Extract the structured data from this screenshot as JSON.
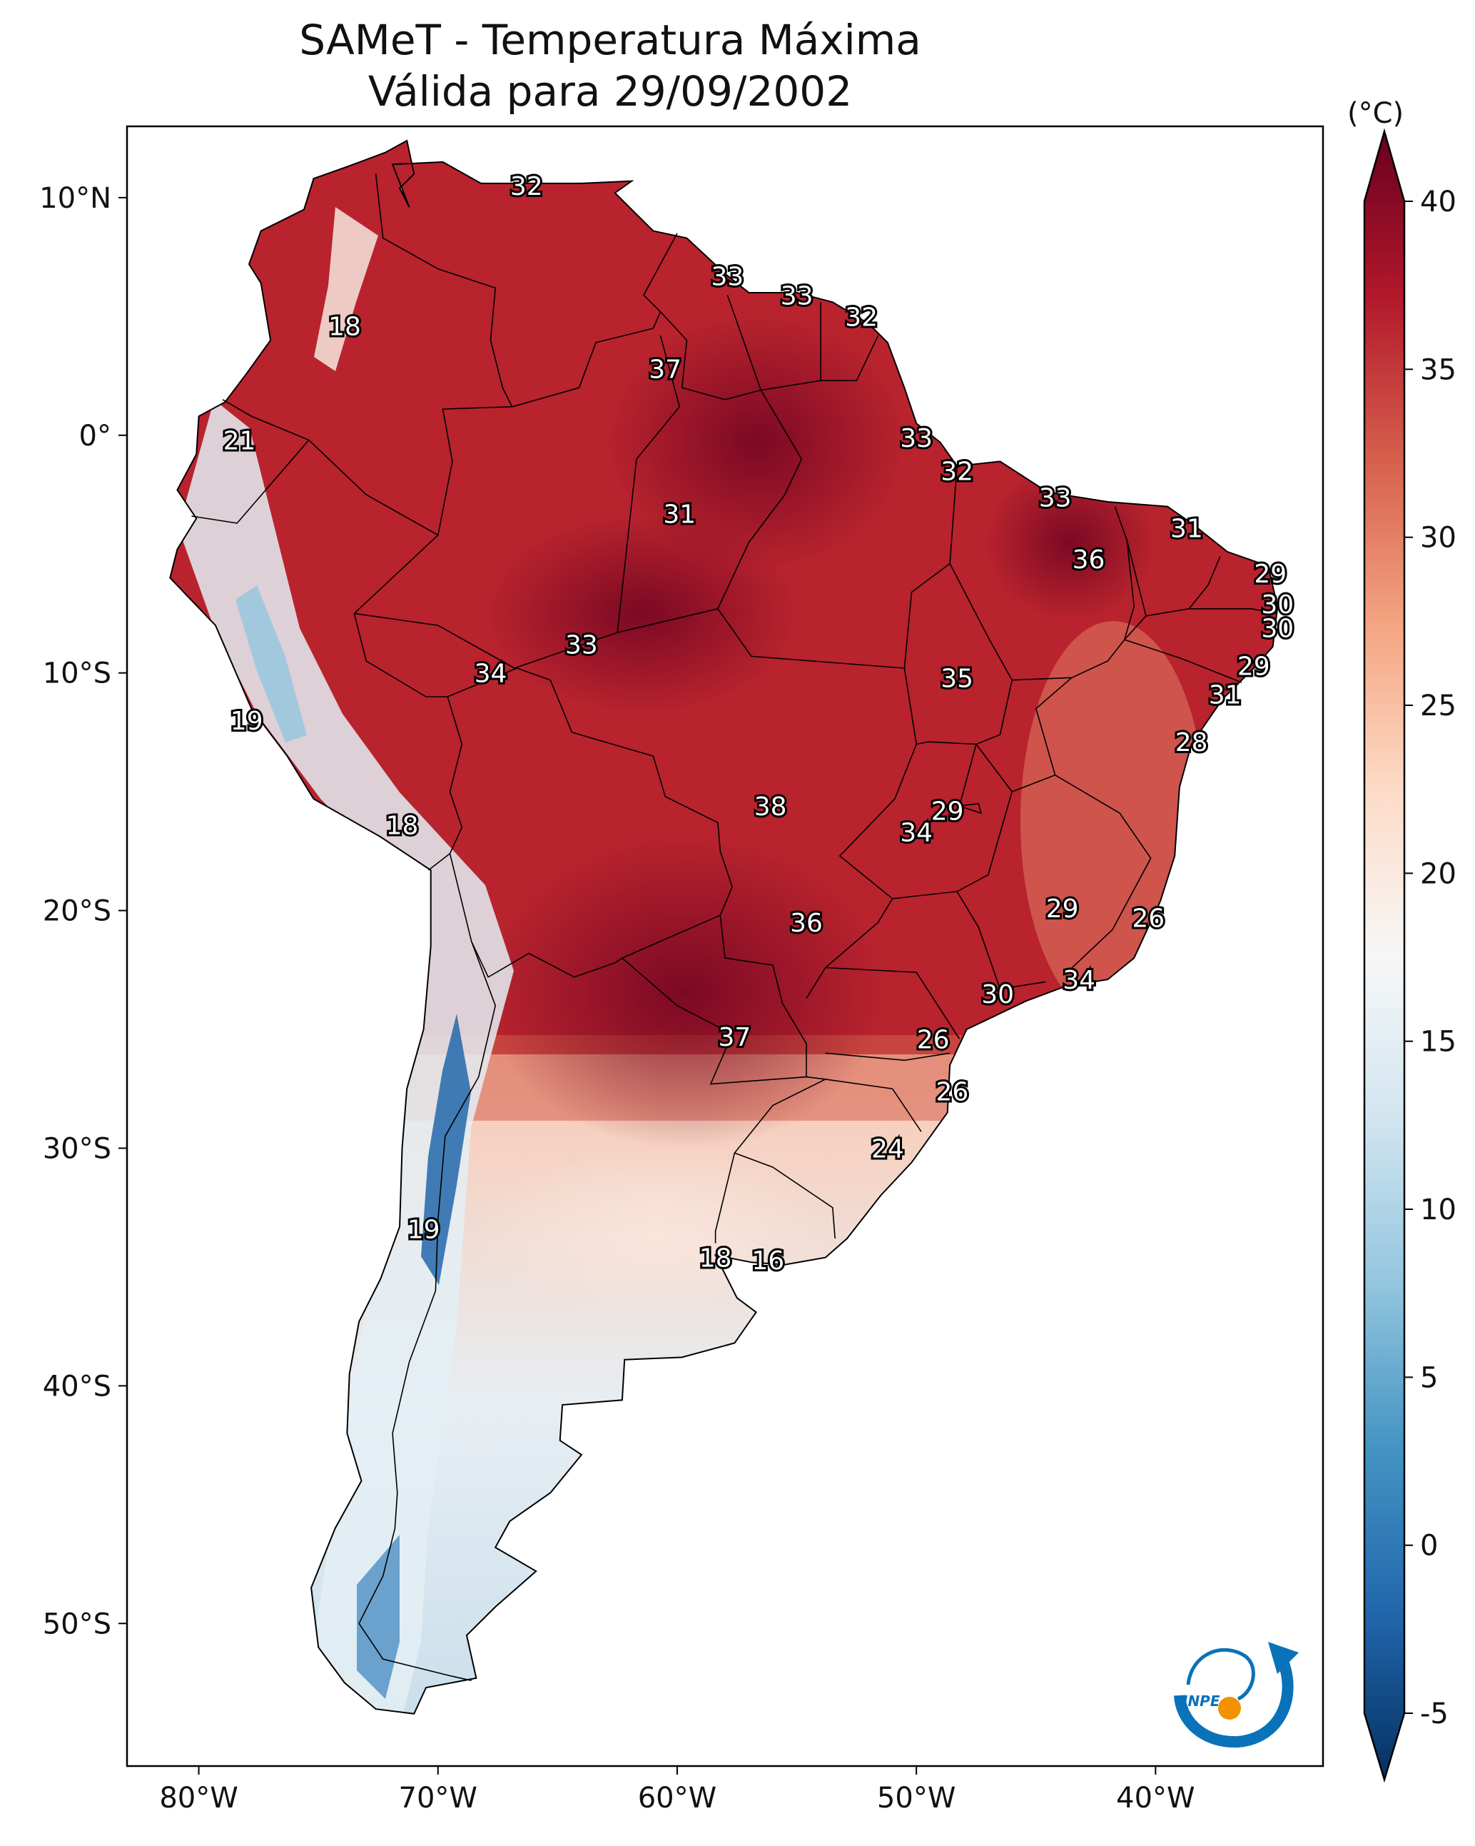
{
  "title": {
    "line1": "SAMeT - Temperatura Máxima",
    "line2": "Válida para 29/09/2002"
  },
  "map": {
    "lon_range": [
      -83,
      -33
    ],
    "lat_range": [
      -56,
      13
    ],
    "lon_ticks": [
      {
        "value": -80,
        "label": "80°W"
      },
      {
        "value": -70,
        "label": "70°W"
      },
      {
        "value": -60,
        "label": "60°W"
      },
      {
        "value": -50,
        "label": "50°W"
      },
      {
        "value": -40,
        "label": "40°W"
      }
    ],
    "lat_ticks": [
      {
        "value": 10,
        "label": "10°N"
      },
      {
        "value": 0,
        "label": "0°"
      },
      {
        "value": -10,
        "label": "10°S"
      },
      {
        "value": -20,
        "label": "20°S"
      },
      {
        "value": -30,
        "label": "30°S"
      },
      {
        "value": -40,
        "label": "40°S"
      },
      {
        "value": -50,
        "label": "50°S"
      }
    ],
    "station_labels": [
      {
        "lon": -66.3,
        "lat": 10.5,
        "text": "32"
      },
      {
        "lon": -57.9,
        "lat": 6.7,
        "text": "33"
      },
      {
        "lon": -55.0,
        "lat": 5.9,
        "text": "33"
      },
      {
        "lon": -52.3,
        "lat": 5.0,
        "text": "32"
      },
      {
        "lon": -73.9,
        "lat": 4.6,
        "text": "18"
      },
      {
        "lon": -60.5,
        "lat": 2.8,
        "text": "37"
      },
      {
        "lon": -78.3,
        "lat": -0.2,
        "text": "21"
      },
      {
        "lon": -50.0,
        "lat": -0.1,
        "text": "33"
      },
      {
        "lon": -48.3,
        "lat": -1.5,
        "text": "32"
      },
      {
        "lon": -44.2,
        "lat": -2.6,
        "text": "33"
      },
      {
        "lon": -59.9,
        "lat": -3.3,
        "text": "31"
      },
      {
        "lon": -38.7,
        "lat": -3.9,
        "text": "31"
      },
      {
        "lon": -42.8,
        "lat": -5.2,
        "text": "36"
      },
      {
        "lon": -35.2,
        "lat": -5.8,
        "text": "29"
      },
      {
        "lon": -34.9,
        "lat": -7.1,
        "text": "30"
      },
      {
        "lon": -34.9,
        "lat": -8.1,
        "text": "30"
      },
      {
        "lon": -64.0,
        "lat": -8.8,
        "text": "33"
      },
      {
        "lon": -35.9,
        "lat": -9.7,
        "text": "29"
      },
      {
        "lon": -67.8,
        "lat": -10.0,
        "text": "34"
      },
      {
        "lon": -48.3,
        "lat": -10.2,
        "text": "35"
      },
      {
        "lon": -37.1,
        "lat": -10.9,
        "text": "31"
      },
      {
        "lon": -78.0,
        "lat": -12.0,
        "text": "19"
      },
      {
        "lon": -38.5,
        "lat": -12.9,
        "text": "28"
      },
      {
        "lon": -56.1,
        "lat": -15.6,
        "text": "38"
      },
      {
        "lon": -48.7,
        "lat": -15.8,
        "text": "29"
      },
      {
        "lon": -71.5,
        "lat": -16.4,
        "text": "18"
      },
      {
        "lon": -50.0,
        "lat": -16.7,
        "text": "34"
      },
      {
        "lon": -43.9,
        "lat": -19.9,
        "text": "29"
      },
      {
        "lon": -40.3,
        "lat": -20.3,
        "text": "26"
      },
      {
        "lon": -54.6,
        "lat": -20.5,
        "text": "36"
      },
      {
        "lon": -43.2,
        "lat": -22.9,
        "text": "34"
      },
      {
        "lon": -46.6,
        "lat": -23.5,
        "text": "30"
      },
      {
        "lon": -49.3,
        "lat": -25.4,
        "text": "26"
      },
      {
        "lon": -57.6,
        "lat": -25.3,
        "text": "37"
      },
      {
        "lon": -48.5,
        "lat": -27.6,
        "text": "26"
      },
      {
        "lon": -51.2,
        "lat": -30.0,
        "text": "24"
      },
      {
        "lon": -70.6,
        "lat": -33.4,
        "text": "19"
      },
      {
        "lon": -58.4,
        "lat": -34.6,
        "text": "18"
      },
      {
        "lon": -56.2,
        "lat": -34.7,
        "text": "16"
      }
    ]
  },
  "colorbar": {
    "unit": "(°C)",
    "min": -5,
    "max": 40,
    "ticks": [
      {
        "value": 40,
        "label": "40"
      },
      {
        "value": 35,
        "label": "35"
      },
      {
        "value": 30,
        "label": "30"
      },
      {
        "value": 25,
        "label": "25"
      },
      {
        "value": 20,
        "label": "20"
      },
      {
        "value": 15,
        "label": "15"
      },
      {
        "value": 10,
        "label": "10"
      },
      {
        "value": 5,
        "label": "5"
      },
      {
        "value": 0,
        "label": "0"
      },
      {
        "value": -5,
        "label": "-5"
      }
    ],
    "colors": [
      "#053061",
      "#2166ac",
      "#4393c3",
      "#92c5de",
      "#d1e5f0",
      "#f7f7f7",
      "#fddbc7",
      "#f4a582",
      "#d6604d",
      "#b2182b",
      "#67001f"
    ]
  },
  "logo": {
    "text": "INPE",
    "colors": {
      "blue": "#0a72b8",
      "orange": "#f39200"
    }
  }
}
